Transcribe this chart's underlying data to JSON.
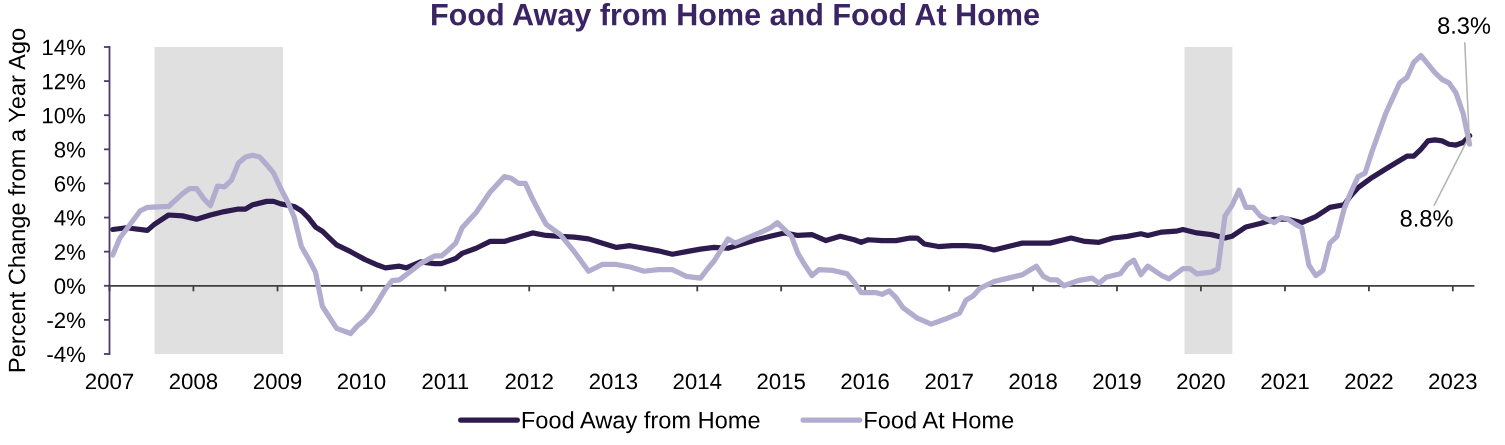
{
  "chart_data": {
    "type": "line",
    "title": "Food Away from Home and Food At Home",
    "ylabel": "Percent Change from a Year Ago",
    "xlim": [
      "2007-01-01",
      "2023-04-01"
    ],
    "xticks": [
      {
        "value": "2007-01-01",
        "label": "2007"
      },
      {
        "value": "2008-01-01",
        "label": "2008"
      },
      {
        "value": "2009-01-01",
        "label": "2009"
      },
      {
        "value": "2010-01-01",
        "label": "2010"
      },
      {
        "value": "2011-01-01",
        "label": "2011"
      },
      {
        "value": "2012-01-01",
        "label": "2012"
      },
      {
        "value": "2013-01-01",
        "label": "2013"
      },
      {
        "value": "2014-01-01",
        "label": "2014"
      },
      {
        "value": "2015-01-01",
        "label": "2015"
      },
      {
        "value": "2016-01-01",
        "label": "2016"
      },
      {
        "value": "2017-01-01",
        "label": "2017"
      },
      {
        "value": "2018-01-01",
        "label": "2018"
      },
      {
        "value": "2019-01-01",
        "label": "2019"
      },
      {
        "value": "2020-01-01",
        "label": "2020"
      },
      {
        "value": "2021-01-01",
        "label": "2021"
      },
      {
        "value": "2022-01-01",
        "label": "2022"
      },
      {
        "value": "2023-01-01",
        "label": "2023"
      }
    ],
    "ylim": [
      -4,
      14
    ],
    "yticks": [
      {
        "value": -4,
        "label": "-4%"
      },
      {
        "value": -2,
        "label": "-2%"
      },
      {
        "value": 0,
        "label": "0%"
      },
      {
        "value": 2,
        "label": "2%"
      },
      {
        "value": 4,
        "label": "4%"
      },
      {
        "value": 6,
        "label": "6%"
      },
      {
        "value": 8,
        "label": "8%"
      },
      {
        "value": 10,
        "label": "10%"
      },
      {
        "value": 12,
        "label": "12%"
      },
      {
        "value": 14,
        "label": "14%"
      }
    ],
    "bands": [
      {
        "axis": "x",
        "from": "2007-07-16",
        "to": "2009-01-25",
        "color": "#e0e0e0"
      },
      {
        "axis": "x",
        "from": "2019-10-22",
        "to": "2020-05-17",
        "color": "#e0e0e0"
      }
    ],
    "legend": "bottom",
    "series": [
      {
        "name": "Food Away from Home",
        "color": "#2d1b4e",
        "x": [
          "2007-01-15",
          "2007-03-15",
          "2007-06-15",
          "2007-07-15",
          "2007-09-15",
          "2007-11-15",
          "2008-01-15",
          "2008-03-15",
          "2008-05-15",
          "2008-07-15",
          "2008-08-15",
          "2008-09-15",
          "2008-11-15",
          "2008-12-15",
          "2009-01-15",
          "2009-03-15",
          "2009-04-15",
          "2009-05-15",
          "2009-06-15",
          "2009-07-15",
          "2009-08-15",
          "2009-09-15",
          "2009-11-15",
          "2010-01-15",
          "2010-03-15",
          "2010-04-15",
          "2010-06-15",
          "2010-07-15",
          "2010-09-15",
          "2010-11-15",
          "2010-12-15",
          "2011-02-15",
          "2011-03-15",
          "2011-05-15",
          "2011-07-15",
          "2011-09-15",
          "2011-11-15",
          "2012-01-15",
          "2012-03-15",
          "2012-05-15",
          "2012-07-15",
          "2012-09-15",
          "2012-11-15",
          "2013-01-15",
          "2013-03-15",
          "2013-05-15",
          "2013-07-15",
          "2013-09-15",
          "2013-11-15",
          "2014-01-15",
          "2014-03-15",
          "2014-05-15",
          "2014-07-15",
          "2014-09-15",
          "2014-11-15",
          "2015-01-15",
          "2015-03-15",
          "2015-05-15",
          "2015-07-15",
          "2015-09-15",
          "2015-11-15",
          "2015-12-15",
          "2016-01-15",
          "2016-03-15",
          "2016-05-15",
          "2016-07-15",
          "2016-08-15",
          "2016-09-15",
          "2016-11-15",
          "2017-01-15",
          "2017-03-15",
          "2017-05-15",
          "2017-07-15",
          "2017-09-15",
          "2017-11-15",
          "2018-01-15",
          "2018-03-15",
          "2018-05-15",
          "2018-06-15",
          "2018-08-15",
          "2018-10-15",
          "2018-12-15",
          "2019-02-15",
          "2019-04-15",
          "2019-05-15",
          "2019-07-15",
          "2019-09-15",
          "2019-10-15",
          "2019-12-15",
          "2020-02-15",
          "2020-04-15",
          "2020-05-15",
          "2020-07-15",
          "2020-09-15",
          "2020-11-15",
          "2021-01-15",
          "2021-03-15",
          "2021-05-15",
          "2021-07-15",
          "2021-09-15",
          "2021-10-15",
          "2021-11-15",
          "2022-01-15",
          "2022-03-15",
          "2022-05-15",
          "2022-06-15",
          "2022-07-15",
          "2022-08-15",
          "2022-09-15",
          "2022-10-15",
          "2022-11-15",
          "2022-12-15",
          "2023-01-15",
          "2023-02-15",
          "2023-03-15"
        ],
        "values": [
          3.3,
          3.4,
          3.25,
          3.6,
          4.15,
          4.1,
          3.9,
          4.15,
          4.35,
          4.5,
          4.5,
          4.75,
          4.95,
          4.95,
          4.8,
          4.65,
          4.4,
          4.0,
          3.45,
          3.2,
          2.8,
          2.4,
          2.0,
          1.55,
          1.2,
          1.05,
          1.15,
          1.05,
          1.4,
          1.3,
          1.3,
          1.6,
          1.9,
          2.2,
          2.6,
          2.6,
          2.85,
          3.1,
          2.95,
          2.9,
          2.85,
          2.75,
          2.5,
          2.25,
          2.35,
          2.2,
          2.05,
          1.85,
          2.0,
          2.15,
          2.25,
          2.2,
          2.45,
          2.7,
          2.9,
          3.1,
          2.95,
          3.0,
          2.65,
          2.9,
          2.7,
          2.55,
          2.7,
          2.65,
          2.65,
          2.8,
          2.8,
          2.45,
          2.3,
          2.35,
          2.35,
          2.3,
          2.1,
          2.3,
          2.5,
          2.5,
          2.5,
          2.7,
          2.8,
          2.6,
          2.55,
          2.8,
          2.9,
          3.05,
          2.95,
          3.15,
          3.2,
          3.3,
          3.1,
          3.0,
          2.8,
          2.9,
          3.45,
          3.65,
          3.9,
          3.9,
          3.7,
          4.05,
          4.6,
          4.75,
          5.3,
          5.75,
          6.35,
          6.85,
          7.35,
          7.6,
          7.6,
          8.0,
          8.5,
          8.55,
          8.5,
          8.3,
          8.25,
          8.4,
          8.8
        ]
      },
      {
        "name": "Food At Home",
        "color": "#b2adcf",
        "x": [
          "2007-01-15",
          "2007-02-15",
          "2007-03-15",
          "2007-05-15",
          "2007-06-15",
          "2007-09-15",
          "2007-11-15",
          "2007-12-15",
          "2008-01-15",
          "2008-02-15",
          "2008-03-15",
          "2008-04-15",
          "2008-05-15",
          "2008-06-15",
          "2008-07-15",
          "2008-08-15",
          "2008-09-15",
          "2008-10-15",
          "2008-11-15",
          "2008-12-15",
          "2009-01-15",
          "2009-02-15",
          "2009-03-15",
          "2009-04-15",
          "2009-05-15",
          "2009-06-15",
          "2009-07-15",
          "2009-09-15",
          "2009-11-15",
          "2009-12-15",
          "2010-01-15",
          "2010-02-15",
          "2010-03-15",
          "2010-04-15",
          "2010-05-15",
          "2010-06-15",
          "2010-07-15",
          "2010-09-15",
          "2010-11-15",
          "2010-12-15",
          "2011-01-15",
          "2011-02-15",
          "2011-03-15",
          "2011-05-15",
          "2011-07-15",
          "2011-09-15",
          "2011-10-15",
          "2011-11-15",
          "2011-12-15",
          "2012-01-15",
          "2012-02-15",
          "2012-03-15",
          "2012-05-15",
          "2012-07-15",
          "2012-09-15",
          "2012-11-15",
          "2013-01-15",
          "2013-03-15",
          "2013-05-15",
          "2013-07-15",
          "2013-09-15",
          "2013-10-15",
          "2013-11-15",
          "2014-01-15",
          "2014-02-15",
          "2014-03-15",
          "2014-05-15",
          "2014-06-15",
          "2014-08-15",
          "2014-10-15",
          "2014-11-15",
          "2014-12-15",
          "2015-01-15",
          "2015-02-15",
          "2015-03-15",
          "2015-04-15",
          "2015-05-15",
          "2015-06-15",
          "2015-08-15",
          "2015-10-15",
          "2015-11-15",
          "2015-12-15",
          "2016-02-15",
          "2016-03-15",
          "2016-04-15",
          "2016-05-15",
          "2016-06-15",
          "2016-08-15",
          "2016-10-15",
          "2016-12-15",
          "2017-02-15",
          "2017-03-15",
          "2017-04-15",
          "2017-05-15",
          "2017-07-15",
          "2017-09-15",
          "2017-11-15",
          "2018-01-15",
          "2018-02-15",
          "2018-03-15",
          "2018-04-15",
          "2018-05-15",
          "2018-07-15",
          "2018-09-15",
          "2018-10-15",
          "2018-11-15",
          "2019-01-15",
          "2019-02-15",
          "2019-03-15",
          "2019-04-15",
          "2019-05-15",
          "2019-07-15",
          "2019-08-15",
          "2019-10-15",
          "2019-11-15",
          "2019-12-15",
          "2020-02-15",
          "2020-03-15",
          "2020-04-15",
          "2020-05-15",
          "2020-06-15",
          "2020-07-15",
          "2020-08-15",
          "2020-09-15",
          "2020-11-15",
          "2020-12-15",
          "2021-01-15",
          "2021-02-15",
          "2021-03-15",
          "2021-04-15",
          "2021-05-15",
          "2021-06-15",
          "2021-07-15",
          "2021-08-15",
          "2021-09-15",
          "2021-10-15",
          "2021-11-15",
          "2021-12-15",
          "2022-01-15",
          "2022-03-15",
          "2022-05-15",
          "2022-06-15",
          "2022-07-15",
          "2022-08-15",
          "2022-09-15",
          "2022-10-15",
          "2022-11-15",
          "2022-12-15",
          "2023-01-15",
          "2023-02-15",
          "2023-03-15"
        ],
        "values": [
          1.8,
          2.8,
          3.3,
          4.4,
          4.6,
          4.65,
          5.4,
          5.7,
          5.7,
          5.1,
          4.7,
          5.85,
          5.8,
          6.2,
          7.2,
          7.55,
          7.65,
          7.55,
          7.1,
          6.6,
          5.7,
          4.9,
          4.0,
          2.3,
          1.6,
          0.8,
          -1.2,
          -2.5,
          -2.8,
          -2.35,
          -2.0,
          -1.5,
          -0.9,
          -0.2,
          0.3,
          0.35,
          0.65,
          1.3,
          1.75,
          1.75,
          2.1,
          2.5,
          3.4,
          4.3,
          5.5,
          6.4,
          6.3,
          6.0,
          6.0,
          5.1,
          4.3,
          3.6,
          3.0,
          2.0,
          0.85,
          1.25,
          1.25,
          1.1,
          0.85,
          0.95,
          0.95,
          0.75,
          0.55,
          0.45,
          1.0,
          1.45,
          2.75,
          2.5,
          2.85,
          3.2,
          3.4,
          3.7,
          3.3,
          2.9,
          1.9,
          1.2,
          0.6,
          0.95,
          0.9,
          0.7,
          0.2,
          -0.4,
          -0.4,
          -0.5,
          -0.3,
          -0.7,
          -1.3,
          -1.9,
          -2.25,
          -1.95,
          -1.6,
          -0.85,
          -0.6,
          -0.15,
          0.25,
          0.45,
          0.65,
          1.15,
          0.55,
          0.35,
          0.35,
          0.0,
          0.3,
          0.45,
          0.15,
          0.5,
          0.7,
          1.25,
          1.5,
          0.65,
          1.15,
          0.6,
          0.4,
          1.0,
          1.0,
          0.7,
          0.8,
          1.0,
          4.1,
          4.7,
          5.6,
          4.6,
          4.6,
          4.1,
          3.7,
          4.0,
          3.9,
          3.6,
          3.4,
          1.2,
          0.6,
          0.9,
          2.5,
          2.9,
          4.5,
          5.5,
          6.4,
          6.6,
          7.9,
          10.1,
          11.9,
          12.2,
          13.1,
          13.5,
          13.0,
          12.5,
          12.1,
          11.9,
          11.3,
          10.1,
          8.3
        ]
      }
    ],
    "annotations": [
      {
        "text": "8.3%",
        "x": "2023-03-15",
        "y": 8.3
      },
      {
        "text": "8.8%",
        "x": "2023-03-15",
        "y": 8.8
      }
    ]
  }
}
